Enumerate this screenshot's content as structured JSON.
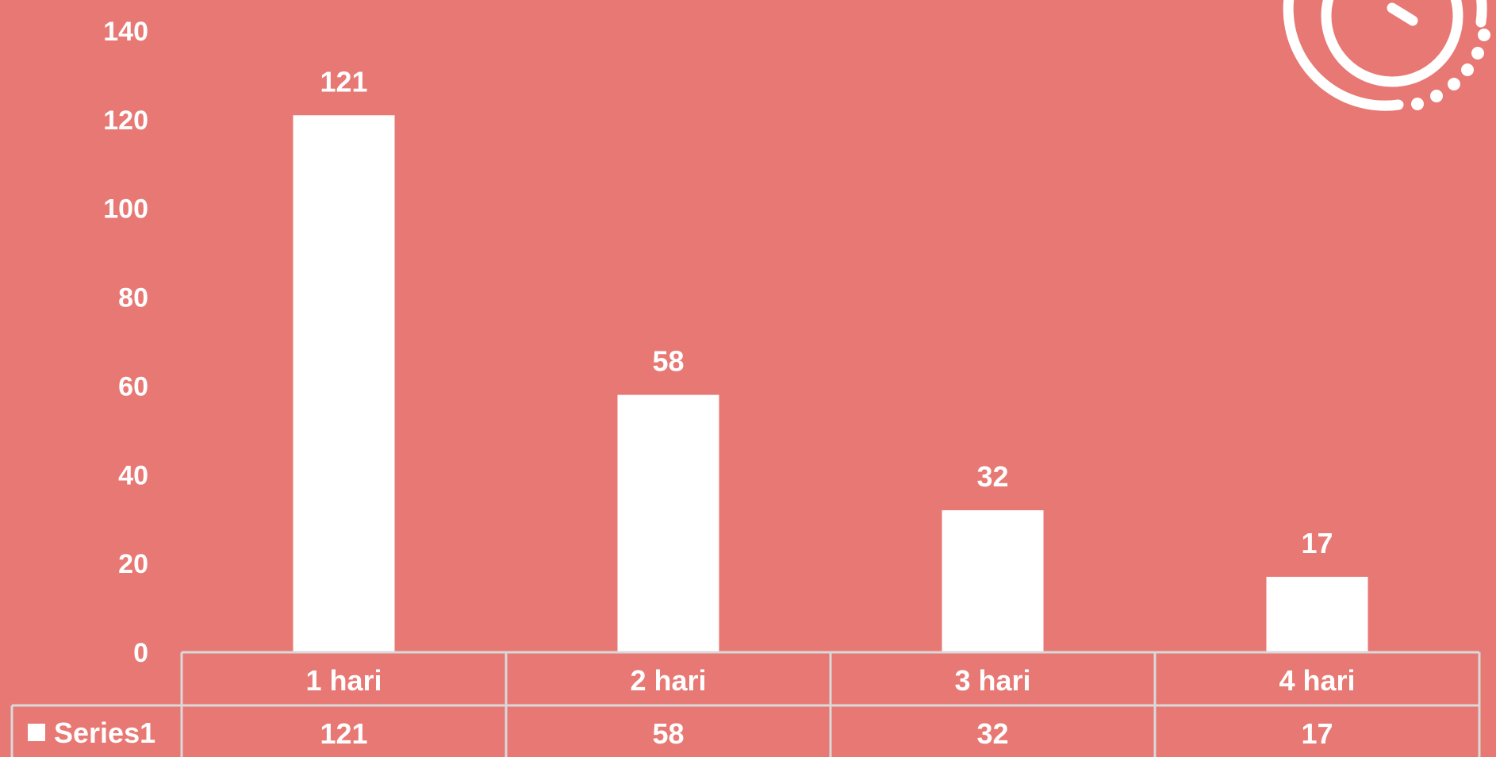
{
  "colors": {
    "background": "#E87874",
    "bar": "#FFFFFF",
    "text": "#FFFFFF",
    "table_line": "#D9D9D9"
  },
  "decoration": {
    "icon": "clock-icon"
  },
  "chart_data": {
    "type": "bar",
    "title": "",
    "xlabel": "",
    "ylabel": "",
    "categories": [
      "1 hari",
      "2 hari",
      "3 hari",
      "4 hari"
    ],
    "series": [
      {
        "name": "Series1",
        "values": [
          121,
          58,
          32,
          17
        ]
      }
    ],
    "ylim": [
      0,
      140
    ],
    "yticks": [
      "0",
      "20",
      "40",
      "60",
      "80",
      "100",
      "120",
      "140"
    ],
    "data_labels": true,
    "data_table": true,
    "legend_in_table": true,
    "grid": false
  }
}
